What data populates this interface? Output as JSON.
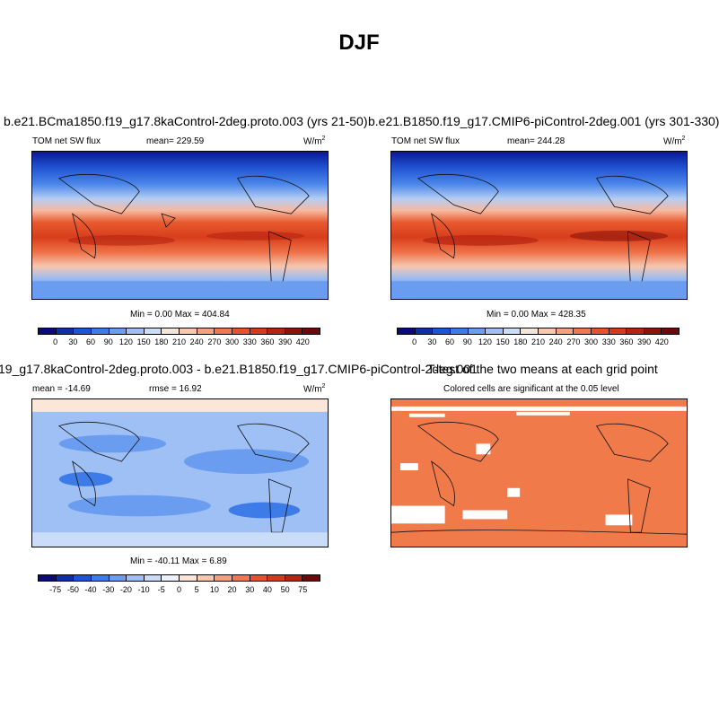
{
  "title": "DJF",
  "panels": [
    {
      "title": "b.e21.BCma1850.f19_g17.8kaControl-2deg.proto.003 (yrs 21-50)",
      "left_label": "TOM net SW flux",
      "center_label": "mean= 229.59",
      "units": "W/m",
      "units_sup": "2",
      "minmax": "Min =   0.00 Max = 404.84"
    },
    {
      "title": "b.e21.B1850.f19_g17.CMIP6-piControl-2deg.001 (yrs 301-330)",
      "left_label": "TOM net SW flux",
      "center_label": "mean= 244.28",
      "units": "W/m",
      "units_sup": "2",
      "minmax": "Min =   0.00 Max = 428.35"
    },
    {
      "title": "19_g17.8kaControl-2deg.proto.003 - b.e21.B1850.f19_g17.CMIP6-piControl-2deg.001",
      "left_label": "mean = -14.69",
      "center_label": "rmse =  16.92",
      "units": "W/m",
      "units_sup": "2",
      "minmax": "Min = -40.11 Max =   6.89"
    },
    {
      "title": "T-test of the two means at each grid point",
      "subtitle": "Colored cells are significant at the 0.05 level"
    }
  ],
  "colorbar_abs": {
    "labels": [
      "0",
      "30",
      "60",
      "90",
      "120",
      "150",
      "180",
      "210",
      "240",
      "270",
      "300",
      "330",
      "360",
      "390",
      "420"
    ],
    "colors": [
      "#0a0a7a",
      "#0f2fa8",
      "#1e55d6",
      "#3d7ce8",
      "#6a9df0",
      "#9fc0f5",
      "#c9dcf8",
      "#f3e4d6",
      "#f8c8ad",
      "#f5a07e",
      "#ef7752",
      "#e6522e",
      "#d43a1d",
      "#b52412",
      "#8c140a",
      "#6b0a06"
    ]
  },
  "colorbar_diff": {
    "labels": [
      "-75",
      "-50",
      "-40",
      "-30",
      "-20",
      "-10",
      "-5",
      "0",
      "5",
      "10",
      "20",
      "30",
      "40",
      "50",
      "75"
    ],
    "colors": [
      "#0a0a7a",
      "#0f2fa8",
      "#1e55d6",
      "#3d7ce8",
      "#6a9df0",
      "#9fc0f5",
      "#c9dcf8",
      "#eef2fb",
      "#fbe6d8",
      "#f8c8ad",
      "#f5a07e",
      "#ef7752",
      "#e6522e",
      "#d43a1d",
      "#b52412",
      "#6b0a06"
    ]
  }
}
